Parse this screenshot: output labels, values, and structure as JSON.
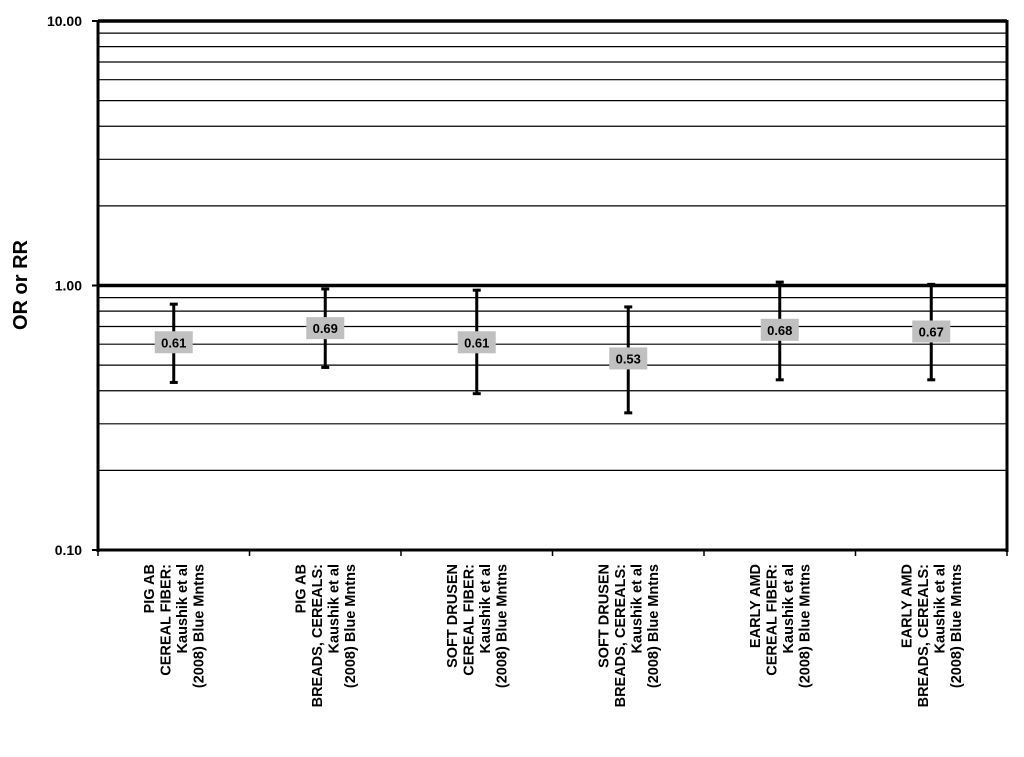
{
  "chart_data": {
    "type": "scatter",
    "y_scale": "log",
    "ylabel": "OR or RR",
    "ylim": [
      0.1,
      10
    ],
    "y_ticks": [
      "10.00",
      "1.00",
      "0.10"
    ],
    "grid": true,
    "reference_line": 1.0,
    "categories": [
      [
        "PIG AB",
        "CEREAL FIBER:",
        "Kaushik et al",
        "(2008) Blue Mntns"
      ],
      [
        "PIG AB",
        "BREADS, CEREALS:",
        "Kaushik et al",
        "(2008) Blue Mntns"
      ],
      [
        "SOFT DRUSEN",
        "CEREAL FIBER:",
        "Kaushik et al",
        "(2008) Blue Mntns"
      ],
      [
        "SOFT DRUSEN",
        "BREADS, CEREALS:",
        "Kaushik et al",
        "(2008) Blue Mntns"
      ],
      [
        "EARLY AMD",
        "CEREAL FIBER:",
        "Kaushik et al",
        "(2008) Blue Mntns"
      ],
      [
        "EARLY AMD",
        "BREADS, CEREALS:",
        "Kaushik et al",
        "(2008) Blue Mntns"
      ]
    ],
    "points": [
      {
        "value": 0.61,
        "label": "0.61",
        "ci_low": 0.43,
        "ci_high": 0.85
      },
      {
        "value": 0.69,
        "label": "0.69",
        "ci_low": 0.49,
        "ci_high": 0.97
      },
      {
        "value": 0.61,
        "label": "0.61",
        "ci_low": 0.39,
        "ci_high": 0.96
      },
      {
        "value": 0.53,
        "label": "0.53",
        "ci_low": 0.33,
        "ci_high": 0.83
      },
      {
        "value": 0.68,
        "label": "0.68",
        "ci_low": 0.44,
        "ci_high": 1.03
      },
      {
        "value": 0.67,
        "label": "0.67",
        "ci_low": 0.44,
        "ci_high": 1.01
      }
    ],
    "colors": {
      "marker_box": "#c0c0c0",
      "line": "#000000",
      "grid": "#000000"
    }
  }
}
